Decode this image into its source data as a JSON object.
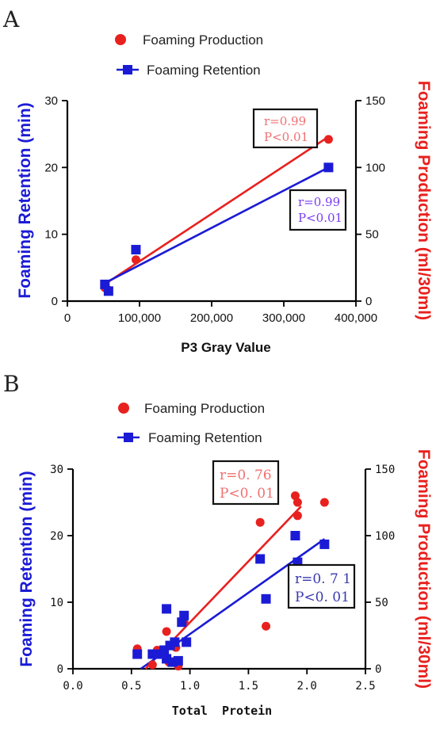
{
  "colors": {
    "production": "#e8211f",
    "retention": "#1b1bd6",
    "annot_retention_a": "#7a3cf0",
    "annot_retention_b": "#3a3ab0",
    "annot_production": "#f07070"
  },
  "chart_data": [
    {
      "type": "scatter",
      "panel": "A",
      "legend": [
        "Foaming Production",
        "Foaming Retention"
      ],
      "xlabel": "P3 Gray Value",
      "ylabel_left": "Foaming Retention (min)",
      "ylabel_right": "Foaming Production (ml/30ml)",
      "xlim": [
        0,
        400000
      ],
      "ylim_left": [
        0,
        30
      ],
      "ylim_right": [
        0,
        150
      ],
      "x_ticks": [
        0,
        100000,
        200000,
        300000,
        400000
      ],
      "x_tick_labels": [
        "0",
        "100,000",
        "200,000",
        "300,000",
        "400,000"
      ],
      "y_left_ticks": [
        "0",
        "10",
        "20",
        "30"
      ],
      "y_right_ticks": [
        "0",
        "50",
        "100",
        "150"
      ],
      "series": [
        {
          "name": "Foaming Production",
          "axis": "right",
          "marker": "circle",
          "points": [
            [
              52000,
              10
            ],
            [
              55000,
              9
            ],
            [
              95000,
              31
            ],
            [
              362000,
              121
            ]
          ],
          "fit": [
            [
              50000,
              12
            ],
            [
              362000,
              123
            ]
          ]
        },
        {
          "name": "Foaming Retention",
          "axis": "left",
          "marker": "square",
          "points": [
            [
              52000,
              2.5
            ],
            [
              57000,
              1.5
            ],
            [
              95000,
              7.7
            ],
            [
              362000,
              20
            ]
          ],
          "fit": [
            [
              50000,
              2.6
            ],
            [
              362000,
              20
            ]
          ]
        }
      ],
      "annotations": [
        {
          "r": "r=0.99",
          "p": "P<0.01",
          "series": "Foaming Production"
        },
        {
          "r": "r=0.99",
          "p": "P<0.01",
          "series": "Foaming Retention"
        }
      ]
    },
    {
      "type": "scatter",
      "panel": "B",
      "legend": [
        "Foaming Production",
        "Foaming Retention"
      ],
      "xlabel": "Total  Protein",
      "ylabel_left": "Foaming Retention (min)",
      "ylabel_right": "Foaming Production (ml/30ml)",
      "xlim": [
        0,
        2.5
      ],
      "ylim_left": [
        0,
        30
      ],
      "ylim_right": [
        0,
        150
      ],
      "x_ticks": [
        0,
        0.5,
        1.0,
        1.5,
        2.0,
        2.5
      ],
      "x_tick_labels": [
        "0.0",
        "0.5",
        "1.0",
        "1.5",
        "2.0",
        "2.5"
      ],
      "y_left_ticks": [
        "0",
        "10",
        "20",
        "30"
      ],
      "y_right_ticks": [
        "0",
        "50",
        "100",
        "150"
      ],
      "series": [
        {
          "name": "Foaming Production",
          "axis": "right",
          "marker": "circle",
          "points": [
            [
              0.55,
              15
            ],
            [
              0.68,
              3
            ],
            [
              0.72,
              14
            ],
            [
              0.8,
              28
            ],
            [
              0.82,
              5
            ],
            [
              0.88,
              16
            ],
            [
              0.9,
              2
            ],
            [
              0.95,
              35
            ],
            [
              1.6,
              110
            ],
            [
              1.65,
              32
            ],
            [
              1.9,
              130
            ],
            [
              1.92,
              125
            ],
            [
              1.92,
              115
            ],
            [
              2.15,
              125
            ]
          ],
          "fit": [
            [
              0.62,
              0
            ],
            [
              1.95,
              122
            ]
          ]
        },
        {
          "name": "Foaming Retention",
          "axis": "left",
          "marker": "square",
          "points": [
            [
              0.55,
              2.2
            ],
            [
              0.68,
              2.2
            ],
            [
              0.72,
              2.2
            ],
            [
              0.78,
              2.8
            ],
            [
              0.8,
              9
            ],
            [
              0.8,
              1.5
            ],
            [
              0.83,
              3.5
            ],
            [
              0.85,
              1
            ],
            [
              0.87,
              4
            ],
            [
              0.9,
              1.2
            ],
            [
              0.93,
              7
            ],
            [
              0.95,
              8
            ],
            [
              0.97,
              4
            ],
            [
              1.6,
              16.5
            ],
            [
              1.65,
              10.5
            ],
            [
              1.9,
              20
            ],
            [
              1.92,
              16
            ],
            [
              2.15,
              18.7
            ]
          ],
          "fit": [
            [
              0.58,
              0
            ],
            [
              2.15,
              19.5
            ]
          ]
        }
      ],
      "annotations": [
        {
          "r": "r=0. 76",
          "p": "P<0. 01",
          "series": "Foaming Production"
        },
        {
          "r": "r=0. 7 1",
          "p": "P<0. 01",
          "series": "Foaming Retention"
        }
      ]
    }
  ]
}
